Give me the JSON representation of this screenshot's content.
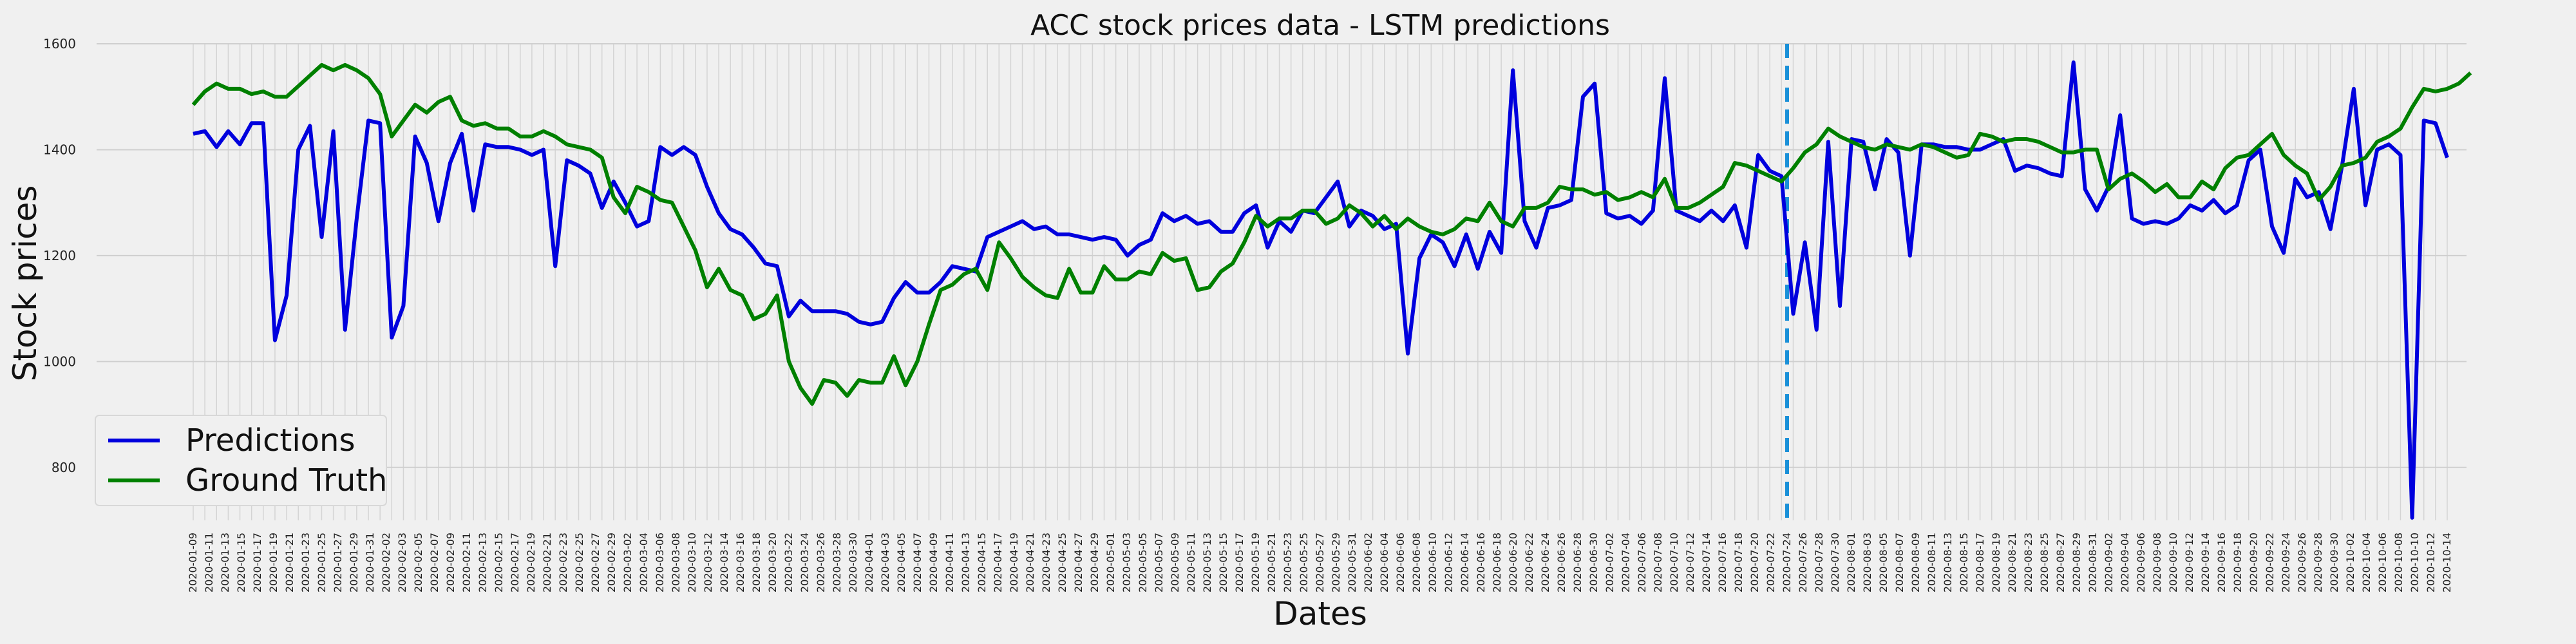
{
  "chart_data": {
    "type": "line",
    "title": "ACC stock prices data - LSTM predictions",
    "xlabel": "Dates",
    "ylabel": "Stock prices",
    "ylim": [
      700,
      1600
    ],
    "yticks": [
      800,
      1000,
      1200,
      1400,
      1600
    ],
    "grid": true,
    "legend_position": "lower-left",
    "split_date": "2020-07-24",
    "xtick_labels": [
      "2020-01-09",
      "2020-01-11",
      "2020-01-13",
      "2020-01-15",
      "2020-01-17",
      "2020-01-19",
      "2020-01-21",
      "2020-01-23",
      "2020-01-25",
      "2020-01-27",
      "2020-01-29",
      "2020-01-31",
      "2020-02-02",
      "2020-02-03",
      "2020-02-05",
      "2020-02-07",
      "2020-02-09",
      "2020-02-11",
      "2020-02-13",
      "2020-02-15",
      "2020-02-17",
      "2020-02-19",
      "2020-02-21",
      "2020-02-23",
      "2020-02-25",
      "2020-02-27",
      "2020-02-29",
      "2020-03-02",
      "2020-03-04",
      "2020-03-06",
      "2020-03-08",
      "2020-03-10",
      "2020-03-12",
      "2020-03-14",
      "2020-03-16",
      "2020-03-18",
      "2020-03-20",
      "2020-03-22",
      "2020-03-24",
      "2020-03-26",
      "2020-03-28",
      "2020-03-30",
      "2020-04-01",
      "2020-04-03",
      "2020-04-05",
      "2020-04-07",
      "2020-04-09",
      "2020-04-11",
      "2020-04-13",
      "2020-04-15",
      "2020-04-17",
      "2020-04-19",
      "2020-04-21",
      "2020-04-23",
      "2020-04-25",
      "2020-04-27",
      "2020-04-29",
      "2020-05-01",
      "2020-05-03",
      "2020-05-05",
      "2020-05-07",
      "2020-05-09",
      "2020-05-11",
      "2020-05-13",
      "2020-05-15",
      "2020-05-17",
      "2020-05-19",
      "2020-05-21",
      "2020-05-23",
      "2020-05-25",
      "2020-05-27",
      "2020-05-29",
      "2020-05-31",
      "2020-06-02",
      "2020-06-04",
      "2020-06-06",
      "2020-06-08",
      "2020-06-10",
      "2020-06-12",
      "2020-06-14",
      "2020-06-16",
      "2020-06-18",
      "2020-06-20",
      "2020-06-22",
      "2020-06-24",
      "2020-06-26",
      "2020-06-28",
      "2020-06-30",
      "2020-07-02",
      "2020-07-04",
      "2020-07-06",
      "2020-07-08",
      "2020-07-10",
      "2020-07-12",
      "2020-07-14",
      "2020-07-16",
      "2020-07-18",
      "2020-07-20",
      "2020-07-22",
      "2020-07-24",
      "2020-07-26",
      "2020-07-28",
      "2020-07-30",
      "2020-08-01",
      "2020-08-03",
      "2020-08-05",
      "2020-08-07",
      "2020-08-09",
      "2020-08-11",
      "2020-08-13",
      "2020-08-15",
      "2020-08-17",
      "2020-08-19",
      "2020-08-21",
      "2020-08-23",
      "2020-08-25",
      "2020-08-27",
      "2020-08-29",
      "2020-08-31",
      "2020-09-02",
      "2020-09-04",
      "2020-09-06",
      "2020-09-08",
      "2020-09-10",
      "2020-09-12",
      "2020-09-14",
      "2020-09-16",
      "2020-09-18",
      "2020-09-20",
      "2020-09-22",
      "2020-09-24",
      "2020-09-26",
      "2020-09-28",
      "2020-09-30",
      "2020-10-02",
      "2020-10-04",
      "2020-10-06",
      "2020-10-08",
      "2020-10-10",
      "2020-10-12",
      "2020-10-14"
    ],
    "series": [
      {
        "name": "Predictions",
        "color": "#0000dd",
        "values": [
          1430,
          1435,
          1405,
          1435,
          1410,
          1450,
          1450,
          1040,
          1125,
          1400,
          1445,
          1235,
          1435,
          1060,
          1270,
          1455,
          1450,
          1045,
          1105,
          1425,
          1375,
          1265,
          1375,
          1430,
          1285,
          1410,
          1405,
          1405,
          1400,
          1390,
          1400,
          1180,
          1380,
          1370,
          1355,
          1290,
          1340,
          1300,
          1255,
          1265,
          1405,
          1390,
          1405,
          1390,
          1330,
          1280,
          1250,
          1240,
          1215,
          1185,
          1180,
          1085,
          1115,
          1095,
          1095,
          1095,
          1090,
          1075,
          1070,
          1075,
          1120,
          1150,
          1130,
          1130,
          1150,
          1180,
          1175,
          1170,
          1235,
          1245,
          1255,
          1265,
          1250,
          1255,
          1240,
          1240,
          1235,
          1230,
          1235,
          1230,
          1200,
          1220,
          1230,
          1280,
          1265,
          1275,
          1260,
          1265,
          1245,
          1245,
          1280,
          1295,
          1215,
          1265,
          1245,
          1285,
          1280,
          1310,
          1340,
          1255,
          1285,
          1275,
          1250,
          1260,
          1015,
          1195,
          1240,
          1225,
          1180,
          1240,
          1175,
          1245,
          1205,
          1550,
          1265,
          1215,
          1290,
          1295,
          1305,
          1500,
          1525,
          1280,
          1270,
          1275,
          1260,
          1285,
          1535,
          1285,
          1275,
          1265,
          1285,
          1265,
          1295,
          1215,
          1390,
          1360,
          1350,
          1090,
          1225,
          1060,
          1415,
          1105,
          1420,
          1415,
          1325,
          1420,
          1395,
          1200,
          1410,
          1410,
          1405,
          1405,
          1400,
          1400,
          1410,
          1420,
          1360,
          1370,
          1365,
          1355,
          1350,
          1565,
          1325,
          1285,
          1330,
          1465,
          1270,
          1260,
          1265,
          1260,
          1270,
          1295,
          1285,
          1305,
          1280,
          1295,
          1380,
          1400,
          1255,
          1205,
          1345,
          1310,
          1320,
          1250,
          1370,
          1515,
          1295,
          1400,
          1410,
          1390,
          705,
          1455,
          1450,
          1385
        ]
      },
      {
        "name": "Ground Truth",
        "color": "#008000",
        "values": [
          1485,
          1510,
          1525,
          1515,
          1515,
          1505,
          1510,
          1500,
          1500,
          1520,
          1540,
          1560,
          1550,
          1560,
          1550,
          1535,
          1505,
          1425,
          1455,
          1485,
          1470,
          1490,
          1500,
          1455,
          1445,
          1450,
          1440,
          1440,
          1425,
          1425,
          1435,
          1425,
          1410,
          1405,
          1400,
          1385,
          1310,
          1280,
          1330,
          1320,
          1305,
          1300,
          1255,
          1210,
          1140,
          1175,
          1135,
          1125,
          1080,
          1090,
          1125,
          1000,
          950,
          920,
          965,
          960,
          935,
          965,
          960,
          960,
          1010,
          955,
          1000,
          1070,
          1135,
          1145,
          1165,
          1175,
          1135,
          1225,
          1195,
          1160,
          1140,
          1125,
          1120,
          1175,
          1130,
          1130,
          1180,
          1155,
          1155,
          1170,
          1165,
          1205,
          1190,
          1195,
          1135,
          1140,
          1170,
          1185,
          1225,
          1275,
          1255,
          1270,
          1270,
          1285,
          1285,
          1260,
          1270,
          1295,
          1280,
          1255,
          1275,
          1250,
          1270,
          1255,
          1245,
          1240,
          1250,
          1270,
          1265,
          1300,
          1265,
          1255,
          1290,
          1290,
          1300,
          1330,
          1325,
          1325,
          1315,
          1320,
          1305,
          1310,
          1320,
          1310,
          1345,
          1290,
          1290,
          1300,
          1315,
          1330,
          1375,
          1370,
          1360,
          1350,
          1340,
          1365,
          1395,
          1410,
          1440,
          1425,
          1415,
          1405,
          1400,
          1410,
          1405,
          1400,
          1410,
          1405,
          1395,
          1385,
          1390,
          1430,
          1425,
          1415,
          1420,
          1420,
          1415,
          1405,
          1395,
          1395,
          1400,
          1400,
          1325,
          1345,
          1355,
          1340,
          1320,
          1335,
          1310,
          1310,
          1340,
          1325,
          1365,
          1385,
          1390,
          1410,
          1430,
          1390,
          1370,
          1355,
          1305,
          1330,
          1370,
          1375,
          1385,
          1415,
          1425,
          1440,
          1480,
          1515,
          1510,
          1515,
          1525,
          1545
        ]
      }
    ]
  }
}
